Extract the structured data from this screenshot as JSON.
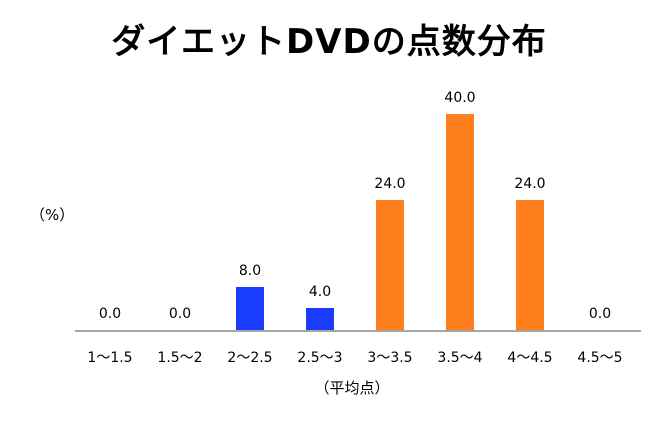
{
  "chart_data": {
    "type": "bar",
    "title": "ダイエットDVDの点数分布",
    "xlabel": "（平均点）",
    "ylabel": "（%）",
    "categories": [
      "1〜1.5",
      "1.5〜2",
      "2〜2.5",
      "2.5〜3",
      "3〜3.5",
      "3.5〜4",
      "4〜4.5",
      "4.5〜5"
    ],
    "values": [
      0.0,
      0.0,
      8.0,
      4.0,
      24.0,
      40.0,
      24.0,
      0.0
    ],
    "value_labels": [
      "0.0",
      "0.0",
      "8.0",
      "4.0",
      "24.0",
      "40.0",
      "24.0",
      "0.0"
    ],
    "bar_colors": [
      "#1a3cff",
      "#1a3cff",
      "#1a3cff",
      "#1a3cff",
      "#ff7f1e",
      "#ff7f1e",
      "#ff7f1e",
      "#ff7f1e"
    ],
    "ylim": [
      0,
      40
    ],
    "grid": false,
    "legend": null
  },
  "colors": {
    "low_scores": "#1a3cff",
    "high_scores": "#ff7f1e",
    "axis": "#a6a6a6"
  }
}
